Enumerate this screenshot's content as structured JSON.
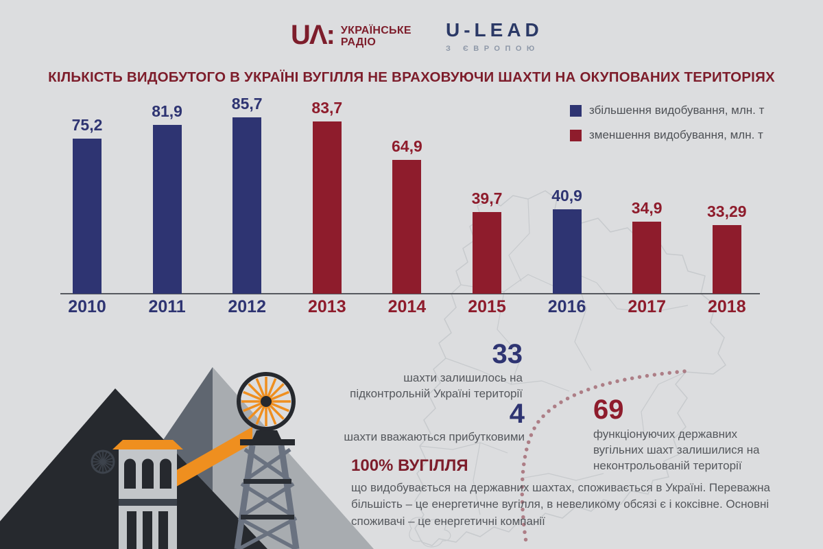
{
  "header": {
    "ua_logo": {
      "mark": "UΛ:",
      "line1": "УКРАЇНСЬКЕ",
      "line2": "РАДІО"
    },
    "ulead_logo": {
      "name": "U-LEAD",
      "tagline": "З ЄВРОПОЮ"
    }
  },
  "title": "КІЛЬКІСТЬ ВИДОБУТОГО В УКРАЇНІ  ВУГІЛЛЯ НЕ ВРАХОВУЮЧИ ШАХТИ НА ОКУПОВАНИХ ТЕРИТОРІЯХ",
  "chart_data": {
    "type": "bar",
    "title": "КІЛЬКІСТЬ ВИДОБУТОГО В УКРАЇНІ ВУГІЛЛЯ НЕ ВРАХОВУЮЧИ ШАХТИ НА ОКУПОВАНИХ ТЕРИТОРІЯХ",
    "unit": "млн. т",
    "categories": [
      "2010",
      "2011",
      "2012",
      "2013",
      "2014",
      "2015",
      "2016",
      "2017",
      "2018"
    ],
    "values": [
      75.2,
      81.9,
      85.7,
      83.7,
      64.9,
      39.7,
      40.9,
      34.9,
      33.29
    ],
    "value_labels": [
      "75,2",
      "81,9",
      "85,7",
      "83,7",
      "64,9",
      "39,7",
      "40,9",
      "34,9",
      "33,29"
    ],
    "bar_types": [
      "increase",
      "increase",
      "increase",
      "decrease",
      "decrease",
      "decrease",
      "increase",
      "decrease",
      "decrease"
    ],
    "colors": {
      "increase": "#2e3472",
      "decrease": "#8e1c2c"
    },
    "ylim": [
      0,
      90
    ],
    "grid": false,
    "legend_position": "top-right",
    "legend": [
      {
        "label": "збільшення видобування, млн. т",
        "type": "increase",
        "color": "#2e3472"
      },
      {
        "label": "зменшення видобування, млн. т",
        "type": "decrease",
        "color": "#8e1c2c"
      }
    ]
  },
  "stats": {
    "mines_controlled": {
      "number": "33",
      "line1": "шахти залишилось на",
      "line2": "підконтрольній Україні території"
    },
    "mines_profitable": {
      "number": "4",
      "line1": "шахти вважаються  прибутковими"
    },
    "mines_uncontrolled": {
      "number": "69",
      "line1": "функціонуючих державних",
      "line2": "вугільних шахт залишилися на",
      "line3": "неконтрольованій території"
    },
    "coal_usage": {
      "heading": "100% ВУГІЛЛЯ",
      "body": "що видобувається на державних шахтах, споживається в Україні. Переважна більшість – це енергетичне вугілля, в невеликому обсязі є і коксівне. Основні споживачі – це енергетичні компанії"
    }
  },
  "colors": {
    "background": "#dcdddf",
    "title": "#7d1d2b",
    "accent_blue": "#2e3472",
    "accent_red": "#8e1c2c",
    "orange": "#ef8f1f",
    "text_gray": "#54575c",
    "map_outline": "#c7cacd"
  }
}
